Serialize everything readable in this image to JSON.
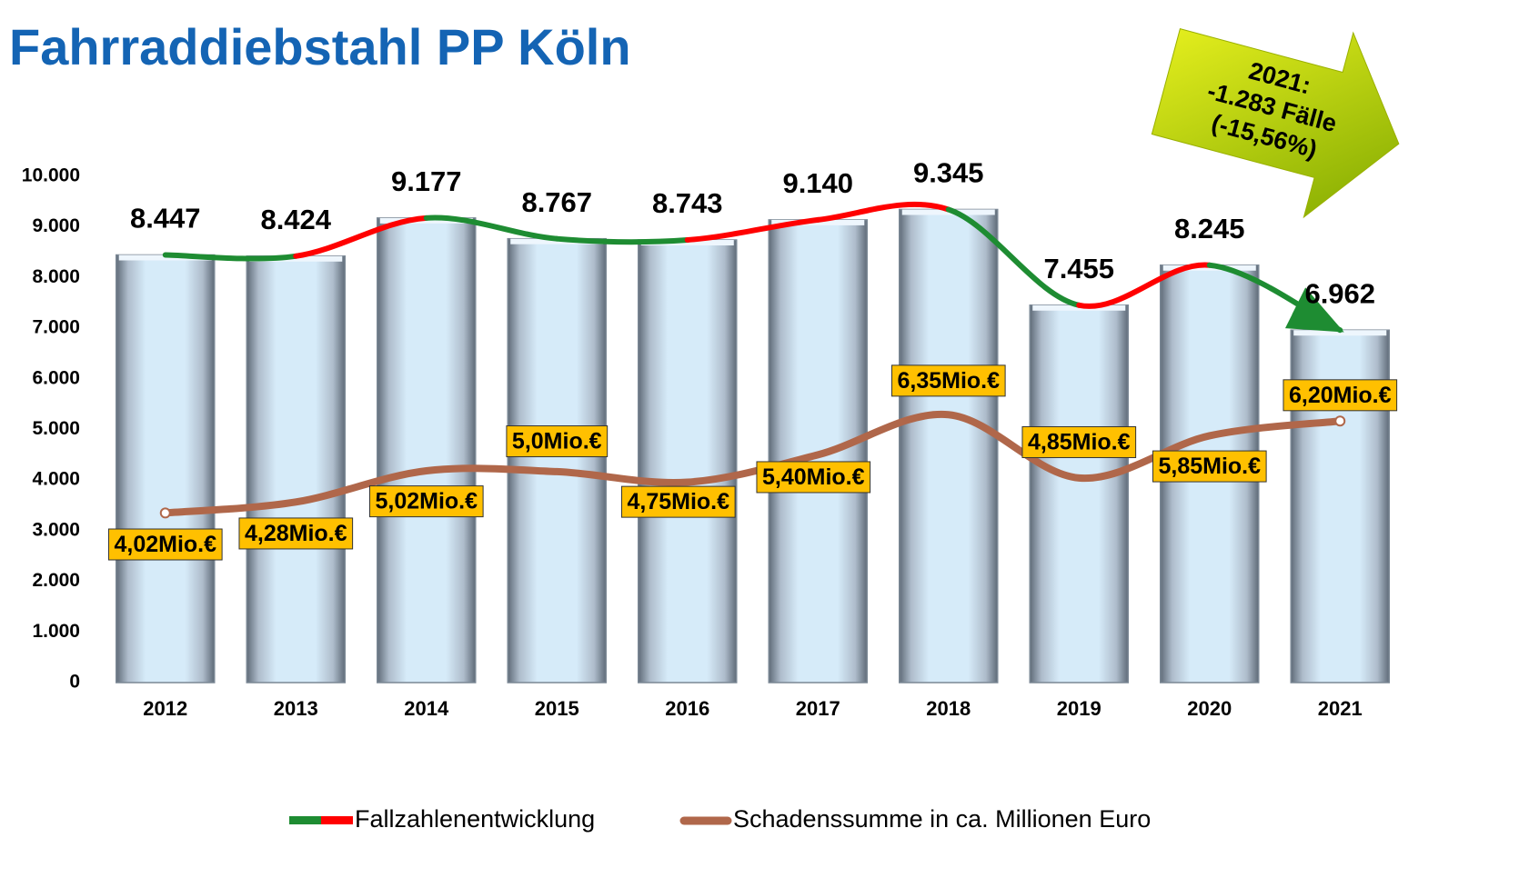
{
  "chart_data": {
    "type": "bar",
    "title": "Fahrraddiebstahl PP Köln",
    "categories": [
      "2012",
      "2013",
      "2014",
      "2015",
      "2016",
      "2017",
      "2018",
      "2019",
      "2020",
      "2021"
    ],
    "series": [
      {
        "name": "Fallzahlenentwicklung",
        "values": [
          8447,
          8424,
          9177,
          8767,
          8743,
          9140,
          9345,
          7455,
          8245,
          6962
        ],
        "value_labels": [
          "8.447",
          "8.424",
          "9.177",
          "8.767",
          "8.743",
          "9.140",
          "9.345",
          "7.455",
          "8.245",
          "6.962"
        ],
        "color": "#d6ebf9",
        "increase_color": "#ff0000",
        "decrease_color": "#1e8c32"
      },
      {
        "name": "Schadenssumme in ca. Millionen Euro",
        "axis": "y2",
        "color": "#b0674a",
        "values": [
          4.02,
          4.28,
          5.02,
          5.0,
          4.75,
          5.4,
          6.35,
          4.85,
          5.85,
          6.2
        ],
        "value_labels": [
          "4,02Mio.€",
          "4,28Mio.€",
          "5,02Mio.€",
          "5,0Mio.€",
          "4,75Mio.€",
          "5,40Mio.€",
          "6,35Mio.€",
          "4,85Mio.€",
          "5,85Mio.€",
          "6,20Mio.€"
        ],
        "label_color": "#ffc000"
      }
    ],
    "ylim": [
      0,
      10000
    ],
    "yticks": [
      0,
      {
        "value": 1000,
        "label": "1.000"
      },
      {
        "value": 2000,
        "label": "2.000"
      },
      {
        "value": 3000,
        "label": "3.000"
      },
      {
        "value": 4000,
        "label": "4.000"
      },
      {
        "value": 5000,
        "label": "5.000"
      },
      {
        "value": 6000,
        "label": "6.000"
      },
      {
        "value": 7000,
        "label": "7.000"
      },
      {
        "value": 8000,
        "label": "8.000"
      },
      {
        "value": 9000,
        "label": "9.000"
      },
      {
        "value": 10000,
        "label": "10.000"
      }
    ],
    "y2lim": [
      0,
      12
    ],
    "annotation": [
      "2021:",
      "-1.283 Fälle",
      "(-15,56%)"
    ]
  }
}
